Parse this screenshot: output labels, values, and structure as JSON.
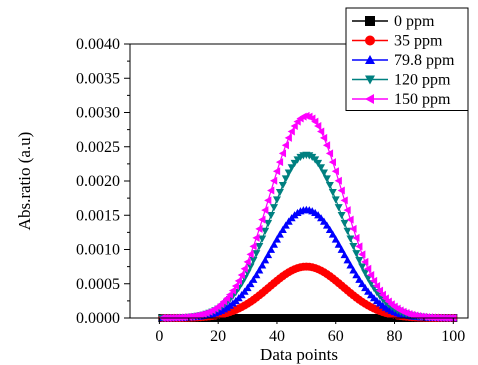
{
  "chart_data": {
    "type": "scatter",
    "title": "",
    "xlabel": "Data points",
    "ylabel": "Abs.ratio (a.u)",
    "xlim": [
      -10,
      105
    ],
    "ylim": [
      0,
      0.004
    ],
    "x_ticks": [
      "0",
      "20",
      "40",
      "60",
      "80",
      "100"
    ],
    "y_ticks": [
      "0.0000",
      "0.0005",
      "0.0010",
      "0.0015",
      "0.0020",
      "0.0025",
      "0.0030",
      "0.0035",
      "0.0040"
    ],
    "grid": false,
    "legend_position": "top-right",
    "x_range": [
      1,
      100
    ],
    "peak_x": 50,
    "gaussian_sigma": 12.5,
    "series": [
      {
        "name": "0 ppm",
        "peak": 0,
        "marker": "square",
        "color": "#000000"
      },
      {
        "name": "35 ppm",
        "peak": 0.00075,
        "marker": "circle",
        "color": "#ff0000"
      },
      {
        "name": "79.8 ppm",
        "peak": 0.00158,
        "marker": "triangle-up",
        "color": "#0000ff"
      },
      {
        "name": "120 ppm",
        "peak": 0.00238,
        "marker": "triangle-down",
        "color": "#008080"
      },
      {
        "name": "150 ppm",
        "peak": 0.00295,
        "marker": "triangle-left",
        "color": "#ff00ff"
      }
    ]
  }
}
